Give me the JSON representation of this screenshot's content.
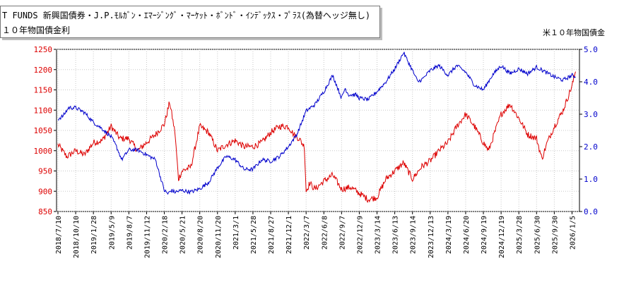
{
  "legend": {
    "series1_label": "T FUNDS 新興国債券・J.P.ﾓﾙｶﾞﾝ・ｴﾏｰｼﾞﾝｸﾞ・ﾏｰｹｯﾄ・ﾎﾞﾝﾄﾞ・ｲﾝﾃﾞｯｸｽ・ﾌﾟﾗｽ(為替ヘッジ無し)",
    "series2_label": "１０年物国債金利"
  },
  "right_axis_title": "米１０年物国債金",
  "colors": {
    "series1": "#dd0000",
    "series2": "#0000cc",
    "left_axis": "#dd0000",
    "right_axis": "#0000cc"
  },
  "chart_data": {
    "type": "line",
    "x_tick_labels": [
      "2018/7/10",
      "2018/10/10",
      "2019/1/28",
      "2019/5/9",
      "2019/8/7",
      "2019/11/12",
      "2020/2/18",
      "2020/5/21",
      "2020/8/20",
      "2020/11/20",
      "2021/3/1",
      "2021/5/28",
      "2021/8/27",
      "2021/12/1",
      "2022/3/7",
      "2022/6/8",
      "2022/9/7",
      "2022/12/9",
      "2023/3/14",
      "2023/6/13",
      "2023/9/14",
      "2023/12/13",
      "2024/3/19",
      "2024/6/20",
      "2024/9/19",
      "2024/12/19",
      "2025/3/28",
      "2025/6/30",
      "2025/9/30",
      "2026/1/5"
    ],
    "left_axis": {
      "ticks": [
        "1250",
        "1200",
        "1150",
        "1100",
        "1050",
        "1000",
        "950",
        "900",
        "850"
      ],
      "ylim": [
        850,
        1250
      ]
    },
    "right_axis": {
      "ticks": [
        "5.0",
        "4.0",
        "3.0",
        "2.0",
        "1.0",
        "0.0"
      ],
      "ylim": [
        0,
        5
      ]
    },
    "series": [
      {
        "name": "T FUNDS 新興国債券・J.P.ﾓﾙｶﾞﾝ・ｴﾏｰｼﾞﾝｸﾞ・ﾏｰｹｯﾄ・ﾎﾞﾝﾄﾞ・ｲﾝﾃﾞｯｸｽ・ﾌﾟﾗｽ(為替ヘッジ無し)",
        "axis": "left",
        "x_index": [
          0,
          0.5,
          1,
          1.5,
          2,
          2.5,
          3,
          3.5,
          4,
          4.5,
          5,
          5.5,
          6,
          6.3,
          6.6,
          6.8,
          7,
          7.5,
          8,
          8.5,
          9,
          9.5,
          10,
          10.5,
          11,
          11.5,
          12,
          12.5,
          13,
          13.3,
          13.6,
          13.9,
          14,
          14.2,
          14.5,
          15,
          15.5,
          16,
          16.5,
          17,
          17.5,
          18,
          18.5,
          19,
          19.5,
          20,
          20.5,
          21,
          21.5,
          22,
          22.5,
          23,
          23.5,
          24,
          24.3,
          24.6,
          25,
          25.5,
          26,
          26.5,
          27,
          27.3,
          27.6,
          28,
          28.5,
          29,
          29.2
        ],
        "values": [
          1015,
          985,
          1000,
          990,
          1020,
          1025,
          1060,
          1030,
          1030,
          1000,
          1020,
          1040,
          1065,
          1120,
          1045,
          930,
          950,
          960,
          1060,
          1045,
          1000,
          1015,
          1025,
          1010,
          1010,
          1020,
          1045,
          1060,
          1060,
          1040,
          1030,
          1010,
          900,
          920,
          905,
          925,
          940,
          905,
          910,
          895,
          880,
          885,
          930,
          950,
          970,
          930,
          960,
          975,
          1000,
          1020,
          1060,
          1090,
          1060,
          1020,
          1000,
          1040,
          1090,
          1115,
          1080,
          1040,
          1030,
          980,
          1020,
          1060,
          1100,
          1160,
          1195
        ]
      },
      {
        "name": "１０年物国債金利",
        "axis": "right",
        "x_index": [
          0,
          0.3,
          0.6,
          1,
          1.5,
          2,
          2.5,
          3,
          3.3,
          3.6,
          4,
          4.5,
          5,
          5.5,
          6,
          6.2,
          6.4,
          6.6,
          7,
          7.5,
          8,
          8.5,
          9,
          9.5,
          10,
          10.5,
          11,
          11.5,
          12,
          12.5,
          13,
          13.5,
          14,
          14.5,
          15,
          15.5,
          16,
          16.2,
          16.4,
          16.8,
          17,
          17.5,
          18,
          18.5,
          19,
          19.5,
          20,
          20.3,
          20.6,
          21,
          21.5,
          22,
          22.5,
          23,
          23.5,
          24,
          24.5,
          25,
          25.5,
          26,
          26.5,
          27,
          27.5,
          28,
          28.5,
          29,
          29.2
        ],
        "values": [
          2.85,
          2.95,
          3.2,
          3.2,
          3.05,
          2.75,
          2.55,
          2.3,
          2.0,
          1.6,
          1.9,
          1.9,
          1.75,
          1.6,
          0.65,
          0.55,
          0.65,
          0.6,
          0.65,
          0.6,
          0.7,
          0.9,
          1.35,
          1.7,
          1.6,
          1.3,
          1.3,
          1.6,
          1.55,
          1.7,
          2.0,
          2.4,
          3.1,
          3.3,
          3.7,
          4.2,
          3.5,
          3.8,
          3.6,
          3.6,
          3.5,
          3.45,
          3.7,
          4.0,
          4.4,
          4.9,
          4.35,
          4.0,
          4.1,
          4.35,
          4.5,
          4.2,
          4.5,
          4.3,
          3.9,
          3.75,
          4.2,
          4.5,
          4.25,
          4.4,
          4.25,
          4.45,
          4.3,
          4.15,
          4.05,
          4.2,
          4.15
        ]
      }
    ],
    "grid": true,
    "legend_position": "top-left"
  }
}
